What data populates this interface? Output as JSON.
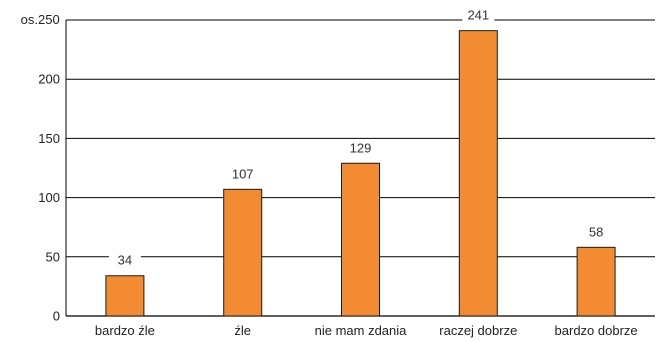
{
  "colors": {
    "bar": "#F28B32",
    "bar_stroke": "#1a1a1a",
    "grid": "#000000",
    "text": "#222222"
  },
  "chart_data": {
    "type": "bar",
    "ylabel": "os.",
    "ylim": [
      0,
      250
    ],
    "yticks": [
      0,
      50,
      100,
      150,
      200,
      250
    ],
    "ytick_labels": [
      "0",
      "50",
      "100",
      "150",
      "200",
      "250"
    ],
    "grid": true,
    "categories": [
      "bardzo źle",
      "źle",
      "nie mam zdania",
      "raczej dobrze",
      "bardzo dobrze"
    ],
    "values": [
      34,
      107,
      129,
      241,
      58
    ],
    "value_labels": [
      "34",
      "107",
      "129",
      "241",
      "58"
    ]
  }
}
